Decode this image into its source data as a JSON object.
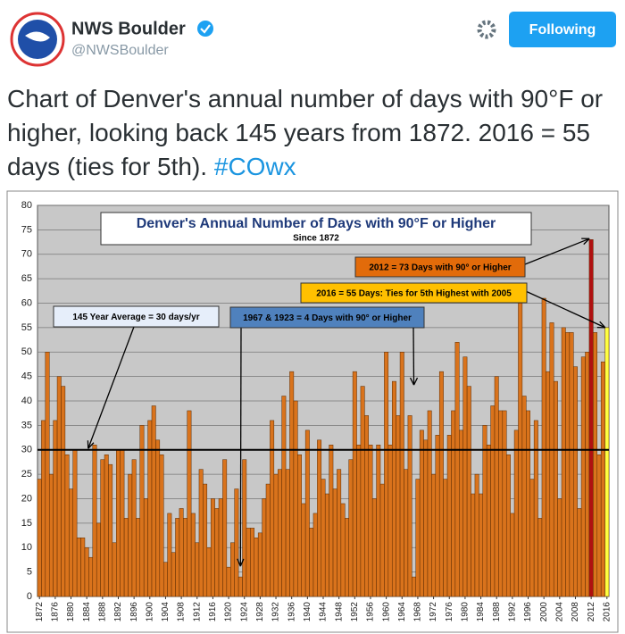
{
  "tweet": {
    "name": "NWS Boulder",
    "handle": "@NWSBoulder",
    "button": "Following",
    "text": "Chart of Denver's annual number of days with 90°F or higher, looking back 145 years from 1872. 2016 = 55 days (ties for 5th).",
    "hashtag": "#COwx"
  },
  "chart_data": {
    "type": "bar",
    "title": "Denver's Annual Number of Days with 90°F or Higher",
    "subtitle": "Since 1872",
    "x": [
      1872,
      1873,
      1874,
      1875,
      1876,
      1877,
      1878,
      1879,
      1880,
      1881,
      1882,
      1883,
      1884,
      1885,
      1886,
      1887,
      1888,
      1889,
      1890,
      1891,
      1892,
      1893,
      1894,
      1895,
      1896,
      1897,
      1898,
      1899,
      1900,
      1901,
      1902,
      1903,
      1904,
      1905,
      1906,
      1907,
      1908,
      1909,
      1910,
      1911,
      1912,
      1913,
      1914,
      1915,
      1916,
      1917,
      1918,
      1919,
      1920,
      1921,
      1922,
      1923,
      1924,
      1925,
      1926,
      1927,
      1928,
      1929,
      1930,
      1931,
      1932,
      1933,
      1934,
      1935,
      1936,
      1937,
      1938,
      1939,
      1940,
      1941,
      1942,
      1943,
      1944,
      1945,
      1946,
      1947,
      1948,
      1949,
      1950,
      1951,
      1952,
      1953,
      1954,
      1955,
      1956,
      1957,
      1958,
      1959,
      1960,
      1961,
      1962,
      1963,
      1964,
      1965,
      1966,
      1967,
      1968,
      1969,
      1970,
      1971,
      1972,
      1973,
      1974,
      1975,
      1976,
      1977,
      1978,
      1979,
      1980,
      1981,
      1982,
      1983,
      1984,
      1985,
      1986,
      1987,
      1988,
      1989,
      1990,
      1991,
      1992,
      1993,
      1994,
      1995,
      1996,
      1997,
      1998,
      1999,
      2000,
      2001,
      2002,
      2003,
      2004,
      2005,
      2006,
      2007,
      2008,
      2009,
      2010,
      2011,
      2012,
      2013,
      2014,
      2015,
      2016
    ],
    "values": [
      24,
      36,
      50,
      25,
      36,
      45,
      43,
      29,
      22,
      30,
      12,
      12,
      10,
      8,
      31,
      15,
      28,
      29,
      27,
      11,
      30,
      30,
      16,
      25,
      28,
      16,
      35,
      20,
      36,
      39,
      32,
      29,
      7,
      17,
      9,
      16,
      18,
      16,
      38,
      17,
      11,
      26,
      23,
      10,
      20,
      18,
      20,
      28,
      6,
      11,
      22,
      4,
      28,
      14,
      14,
      12,
      13,
      20,
      23,
      36,
      25,
      26,
      41,
      26,
      46,
      40,
      29,
      19,
      34,
      14,
      17,
      32,
      24,
      21,
      31,
      22,
      26,
      19,
      16,
      28,
      46,
      31,
      43,
      37,
      31,
      20,
      31,
      23,
      50,
      31,
      44,
      37,
      50,
      26,
      37,
      4,
      24,
      34,
      32,
      38,
      25,
      33,
      46,
      24,
      33,
      38,
      52,
      34,
      49,
      43,
      21,
      25,
      21,
      35,
      31,
      39,
      45,
      38,
      38,
      29,
      17,
      34,
      60,
      41,
      38,
      24,
      36,
      16,
      61,
      46,
      56,
      44,
      20,
      55,
      54,
      54,
      47,
      18,
      49,
      50,
      73,
      54,
      29,
      48,
      55
    ],
    "xlim": [
      1871.5,
      2016.5
    ],
    "xticks": [
      1872,
      1876,
      1880,
      1884,
      1888,
      1892,
      1896,
      1900,
      1904,
      1908,
      1912,
      1916,
      1920,
      1924,
      1928,
      1932,
      1936,
      1940,
      1944,
      1948,
      1952,
      1956,
      1960,
      1964,
      1968,
      1972,
      1976,
      1980,
      1984,
      1988,
      1992,
      1996,
      2000,
      2004,
      2008,
      2012,
      2016
    ],
    "ylim": [
      0,
      80
    ],
    "yticks": [
      0,
      5,
      10,
      15,
      20,
      25,
      30,
      35,
      40,
      45,
      50,
      55,
      60,
      65,
      70,
      75,
      80
    ],
    "grid": true,
    "color": "#d9731c",
    "highlight_colors": {
      "2012": "#b01010",
      "2016": "#ffff40"
    },
    "average": 30,
    "annotations": [
      "145 Year Average = 30 days/yr",
      "1967 & 1923 = 4 Days with 90° or Higher",
      "2012 = 73 Days with 90° or Higher",
      "2016 = 55 Days: Ties for 5th Highest with 2005"
    ]
  }
}
